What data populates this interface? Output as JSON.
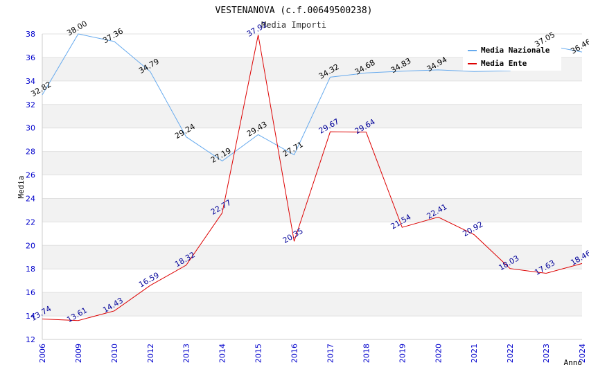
{
  "chart_data": {
    "type": "line",
    "title": "VESTENANOVA (c.f.00649500238)",
    "subtitle": "Media Importi",
    "xlabel": "Anno",
    "ylabel": "Media",
    "ylim": [
      12,
      38
    ],
    "yticks": [
      "12",
      "14",
      "16",
      "18",
      "20",
      "22",
      "24",
      "26",
      "28",
      "30",
      "32",
      "34",
      "36",
      "38"
    ],
    "categories": [
      "2006",
      "2009",
      "2010",
      "2012",
      "2013",
      "2014",
      "2015",
      "2016",
      "2017",
      "2018",
      "2019",
      "2020",
      "2021",
      "2022",
      "2023",
      "2024"
    ],
    "legend_position": "top-right",
    "series": [
      {
        "name": "Media Nazionale",
        "color": "#66aaee",
        "label_color": "#000000",
        "values": [
          32.82,
          38.0,
          37.36,
          34.79,
          29.24,
          27.19,
          29.43,
          27.71,
          34.32,
          34.68,
          34.83,
          34.94,
          34.8,
          34.87,
          37.05,
          36.46
        ],
        "labels": [
          "32.82",
          "38.00",
          "37.36",
          "34.79",
          "29.24",
          "27.19",
          "29.43",
          "27.71",
          "34.32",
          "34.68",
          "34.83",
          "34.94",
          "",
          "",
          "37.05",
          "36.46"
        ]
      },
      {
        "name": "Media Ente",
        "color": "#dd0000",
        "label_color": "#000099",
        "values": [
          13.74,
          13.61,
          14.43,
          16.59,
          18.32,
          22.77,
          37.92,
          20.35,
          29.67,
          29.64,
          21.54,
          22.41,
          20.92,
          18.03,
          17.63,
          18.46
        ],
        "labels": [
          "13.74",
          "13.61",
          "14.43",
          "16.59",
          "18.32",
          "22.77",
          "37.92",
          "20.35",
          "29.67",
          "29.64",
          "21.54",
          "22.41",
          "20.92",
          "18.03",
          "17.63",
          "18.46"
        ]
      }
    ]
  }
}
